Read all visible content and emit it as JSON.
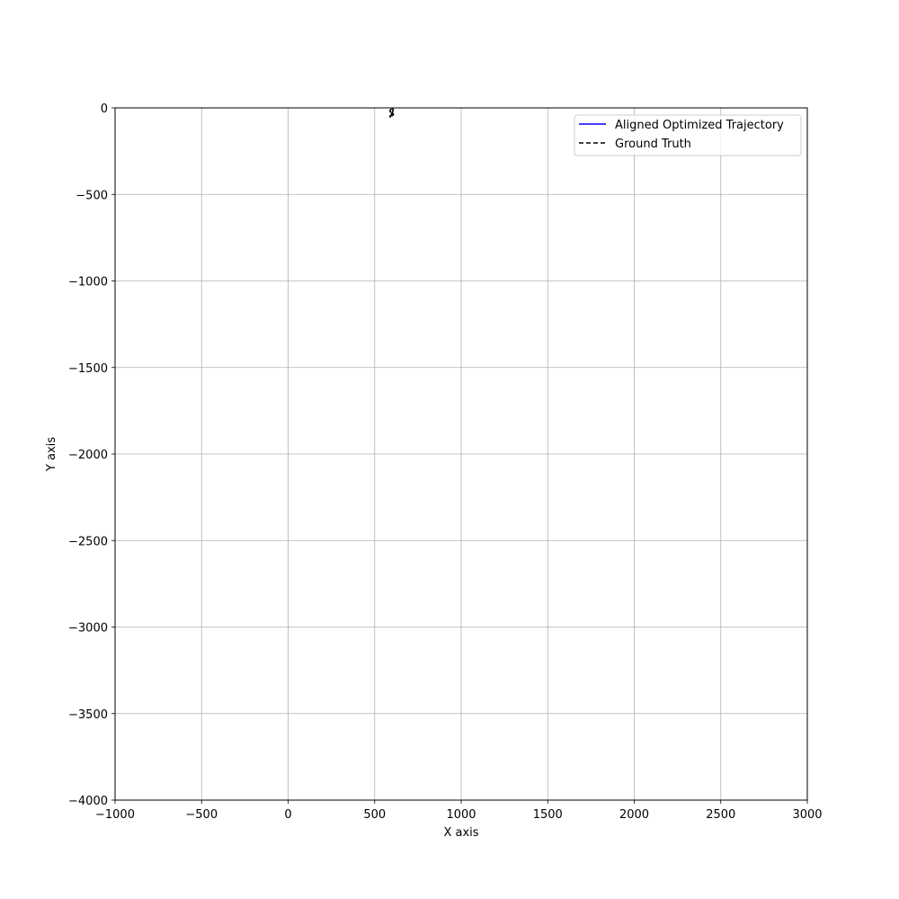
{
  "chart_data": {
    "type": "line",
    "title": "",
    "xlabel": "X axis",
    "ylabel": "Y axis",
    "xlim": [
      -1000,
      3000
    ],
    "ylim": [
      -4000,
      0
    ],
    "xticks": [
      -1000,
      -500,
      0,
      500,
      1000,
      1500,
      2000,
      2500,
      3000
    ],
    "yticks": [
      0,
      -500,
      -1000,
      -1500,
      -2000,
      -2500,
      -3000,
      -3500,
      -4000
    ],
    "xtick_labels": [
      "−1000",
      "−500",
      "0",
      "500",
      "1000",
      "1500",
      "2000",
      "2500",
      "3000"
    ],
    "ytick_labels": [
      "0",
      "−500",
      "−1000",
      "−1500",
      "−2000",
      "−2500",
      "−3000",
      "−3500",
      "−4000"
    ],
    "grid": true,
    "legend_position": "top-right",
    "series": [
      {
        "name": "Aligned Optimized Trajectory",
        "color": "#0000ff",
        "style": "solid",
        "x": [],
        "y": []
      },
      {
        "name": "Ground Truth",
        "color": "#000000",
        "style": "dashed",
        "x": [
          588,
          592,
          596,
          598,
          600,
          603,
          606,
          608,
          604,
          598,
          594,
          590,
          588,
          592,
          598,
          604,
          608,
          606,
          600,
          594,
          590,
          588
        ],
        "y": [
          -50,
          -45,
          -40,
          -34,
          -28,
          -22,
          -16,
          -10,
          -6,
          -4,
          -8,
          -14,
          -20,
          -24,
          -26,
          -30,
          -36,
          -42,
          -46,
          -48,
          -52,
          -50
        ]
      }
    ]
  }
}
